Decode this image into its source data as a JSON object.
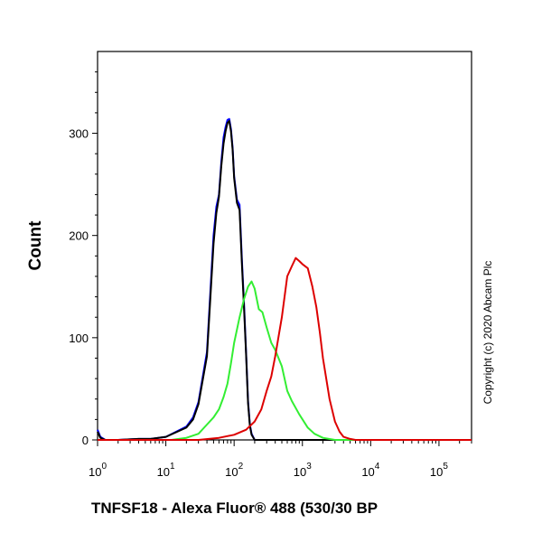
{
  "chart_data": {
    "type": "line",
    "title": "",
    "xlabel": "TNFSF18 - Alexa Fluor® 488 (530/30 BP",
    "ylabel": "Count",
    "x_scale": "log",
    "xlim": [
      1,
      300000
    ],
    "ylim": [
      0,
      380
    ],
    "x_ticks": [
      {
        "value": 1,
        "base": "10",
        "exp": "0"
      },
      {
        "value": 10,
        "base": "10",
        "exp": "1"
      },
      {
        "value": 100,
        "base": "10",
        "exp": "2"
      },
      {
        "value": 1000,
        "base": "10",
        "exp": "3"
      },
      {
        "value": 10000,
        "base": "10",
        "exp": "4"
      },
      {
        "value": 100000,
        "base": "10",
        "exp": "5"
      }
    ],
    "y_ticks": [
      {
        "value": 0,
        "label": "0"
      },
      {
        "value": 100,
        "label": "100"
      },
      {
        "value": 200,
        "label": "200"
      },
      {
        "value": 300,
        "label": "300"
      }
    ],
    "grid": false,
    "legend": "none",
    "copyright": "Copyright (c) 2020 Abcam Plc",
    "series": [
      {
        "color": "#0000ff",
        "x": [
          1,
          1.1,
          1.3,
          2,
          4,
          6,
          10,
          20,
          25,
          30,
          40,
          50,
          55,
          60,
          65,
          70,
          75,
          80,
          85,
          90,
          95,
          100,
          110,
          120,
          130,
          140,
          150,
          160,
          170,
          180,
          200,
          300000
        ],
        "y": [
          10,
          3,
          0,
          0,
          1,
          1,
          3,
          13,
          22,
          37,
          86,
          200,
          228,
          240,
          272,
          296,
          306,
          313,
          314,
          304,
          286,
          258,
          235,
          230,
          176,
          132,
          84,
          38,
          15,
          6,
          0,
          0
        ]
      },
      {
        "color": "#000000",
        "x": [
          1,
          1.1,
          1.3,
          2,
          4,
          6,
          10,
          20,
          25,
          30,
          40,
          50,
          55,
          60,
          65,
          70,
          75,
          80,
          85,
          90,
          95,
          100,
          110,
          120,
          130,
          140,
          150,
          160,
          170,
          180,
          200,
          300000
        ],
        "y": [
          8,
          2,
          0,
          0,
          1,
          1,
          3,
          12,
          20,
          35,
          82,
          192,
          222,
          238,
          268,
          290,
          302,
          310,
          312,
          302,
          284,
          256,
          232,
          225,
          172,
          128,
          82,
          36,
          14,
          5,
          0,
          0
        ]
      },
      {
        "color": "#33ee33",
        "x": [
          1,
          12,
          20,
          30,
          40,
          50,
          60,
          70,
          80,
          90,
          100,
          120,
          140,
          160,
          180,
          200,
          230,
          260,
          300,
          350,
          400,
          500,
          600,
          700,
          900,
          1200,
          1500,
          2000,
          3000,
          300000
        ],
        "y": [
          0,
          0,
          2,
          6,
          15,
          22,
          30,
          42,
          55,
          75,
          95,
          120,
          138,
          150,
          155,
          148,
          128,
          125,
          110,
          95,
          88,
          72,
          48,
          38,
          25,
          12,
          6,
          2,
          0,
          0
        ]
      },
      {
        "color": "#dd0000",
        "x": [
          1,
          30,
          60,
          100,
          150,
          200,
          250,
          300,
          350,
          400,
          500,
          600,
          700,
          800,
          900,
          1000,
          1200,
          1400,
          1600,
          1800,
          2000,
          2500,
          3000,
          3500,
          4000,
          5000,
          6000,
          300000
        ],
        "y": [
          0,
          0,
          2,
          5,
          10,
          18,
          30,
          48,
          62,
          82,
          120,
          160,
          170,
          178,
          175,
          172,
          168,
          150,
          130,
          105,
          80,
          40,
          18,
          8,
          3,
          1,
          0,
          0
        ]
      }
    ]
  }
}
